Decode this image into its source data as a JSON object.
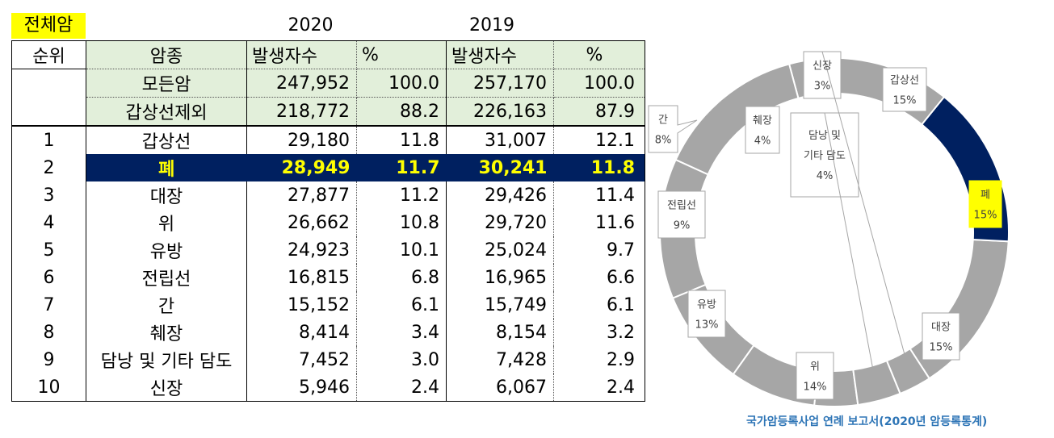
{
  "table": {
    "tag": "전체암",
    "years": [
      "2020",
      "2019"
    ],
    "headers": [
      "순위",
      "암종",
      "발생자수",
      "%",
      "발생자수",
      "%"
    ],
    "summary_rows": [
      {
        "name": "모든암",
        "c2020": "247,952",
        "p2020": "100.0",
        "c2019": "257,170",
        "p2019": "100.0"
      },
      {
        "name": "갑상선제외",
        "c2020": "218,772",
        "p2020": "88.2",
        "c2019": "226,163",
        "p2019": "87.9"
      }
    ],
    "rows": [
      {
        "rank": "1",
        "name": "갑상선",
        "c2020": "29,180",
        "p2020": "11.8",
        "c2019": "31,007",
        "p2019": "12.1"
      },
      {
        "rank": "2",
        "name": "폐",
        "c2020": "28,949",
        "p2020": "11.7",
        "c2019": "30,241",
        "p2019": "11.8"
      },
      {
        "rank": "3",
        "name": "대장",
        "c2020": "27,877",
        "p2020": "11.2",
        "c2019": "29,426",
        "p2019": "11.4"
      },
      {
        "rank": "4",
        "name": "위",
        "c2020": "26,662",
        "p2020": "10.8",
        "c2019": "29,720",
        "p2019": "11.6"
      },
      {
        "rank": "5",
        "name": "유방",
        "c2020": "24,923",
        "p2020": "10.1",
        "c2019": "25,024",
        "p2019": "9.7"
      },
      {
        "rank": "6",
        "name": "전립선",
        "c2020": "16,815",
        "p2020": "6.8",
        "c2019": "16,965",
        "p2019": "6.6"
      },
      {
        "rank": "7",
        "name": "간",
        "c2020": "15,152",
        "p2020": "6.1",
        "c2019": "15,749",
        "p2019": "6.1"
      },
      {
        "rank": "8",
        "name": "췌장",
        "c2020": "8,414",
        "p2020": "3.4",
        "c2019": "8,154",
        "p2019": "3.2"
      },
      {
        "rank": "9",
        "name": "담낭 및 기타 담도",
        "c2020": "7,452",
        "p2020": "3.0",
        "c2019": "7,428",
        "p2019": "2.9"
      },
      {
        "rank": "10",
        "name": "신장",
        "c2020": "5,946",
        "p2020": "2.4",
        "c2019": "6,067",
        "p2019": "2.4"
      }
    ]
  },
  "chart_data": {
    "type": "pie",
    "style": "donut",
    "start_angle_deg": 57,
    "slices": [
      {
        "label": "갑상선",
        "pct": 15,
        "value_label": "15%",
        "highlight": false
      },
      {
        "label": "폐",
        "pct": 15,
        "value_label": "15%",
        "highlight": true
      },
      {
        "label": "대장",
        "pct": 15,
        "value_label": "15%",
        "highlight": false
      },
      {
        "label": "위",
        "pct": 14,
        "value_label": "14%",
        "highlight": false
      },
      {
        "label": "유방",
        "pct": 13,
        "value_label": "13%",
        "highlight": false
      },
      {
        "label": "전립선",
        "pct": 9,
        "value_label": "9%",
        "highlight": false
      },
      {
        "label": "간",
        "pct": 8,
        "value_label": "8%",
        "highlight": false
      },
      {
        "label": "췌장",
        "pct": 4,
        "value_label": "4%",
        "highlight": false
      },
      {
        "label": "담낭 및 기타 담도",
        "pct": 4,
        "value_label": "4%",
        "highlight": false
      },
      {
        "label": "신장",
        "pct": 3,
        "value_label": "3%",
        "highlight": false
      }
    ]
  },
  "source": "국가암등록사업 연례 보고서(2020년 암등록통계)",
  "colors": {
    "slice": "#a6a6a6",
    "highlight": "#002060",
    "label_highlight": "#ffff00",
    "header_bg": "#e2efda",
    "source_text": "#2e75b6"
  }
}
